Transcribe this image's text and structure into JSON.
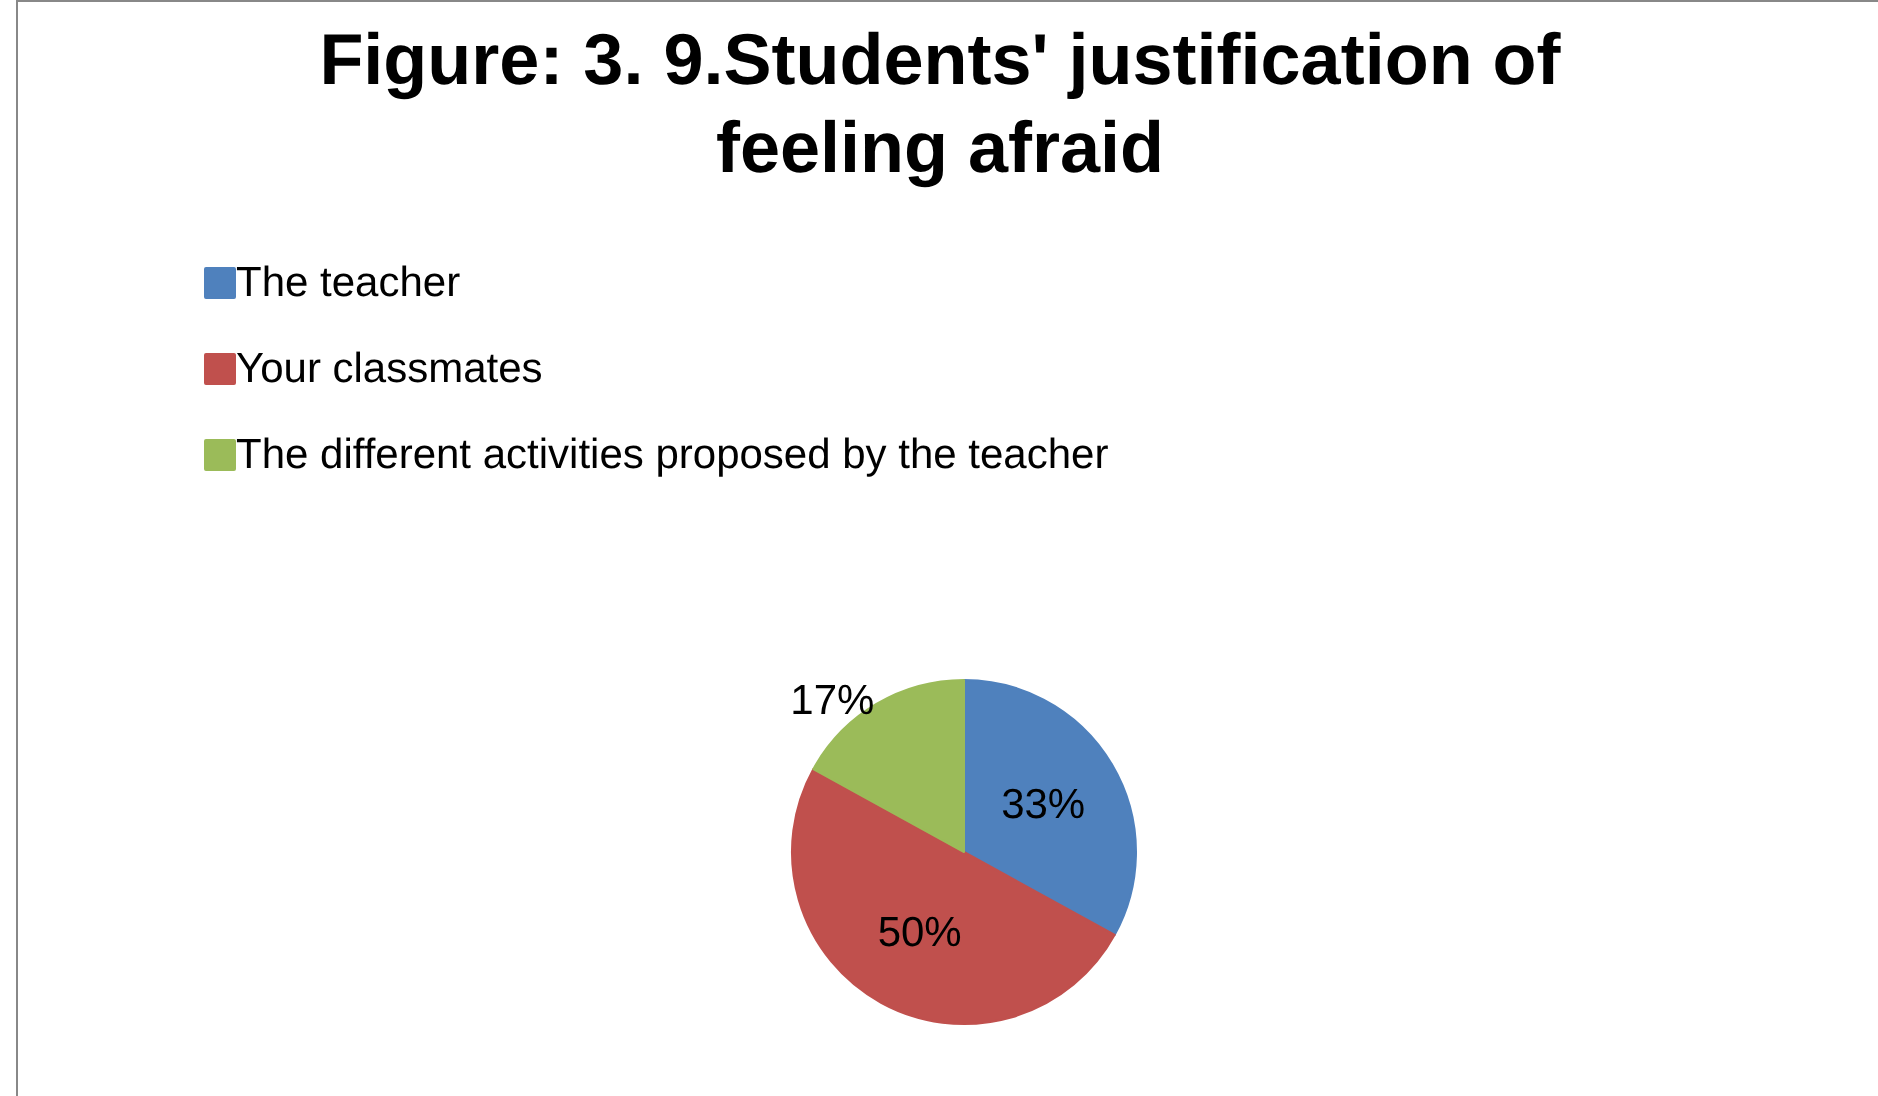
{
  "chart_data": {
    "type": "pie",
    "title": "Figure: 3. 9.Students' justification of feeling afraid",
    "categories": [
      "The teacher",
      "Your classmates",
      "The different activities proposed by the teacher"
    ],
    "values": [
      33,
      50,
      17
    ],
    "value_labels": [
      "33%",
      "50%",
      "17%"
    ],
    "colors": [
      "#4f81bd",
      "#c0504d",
      "#9bbb59"
    ],
    "legend": "top left"
  }
}
